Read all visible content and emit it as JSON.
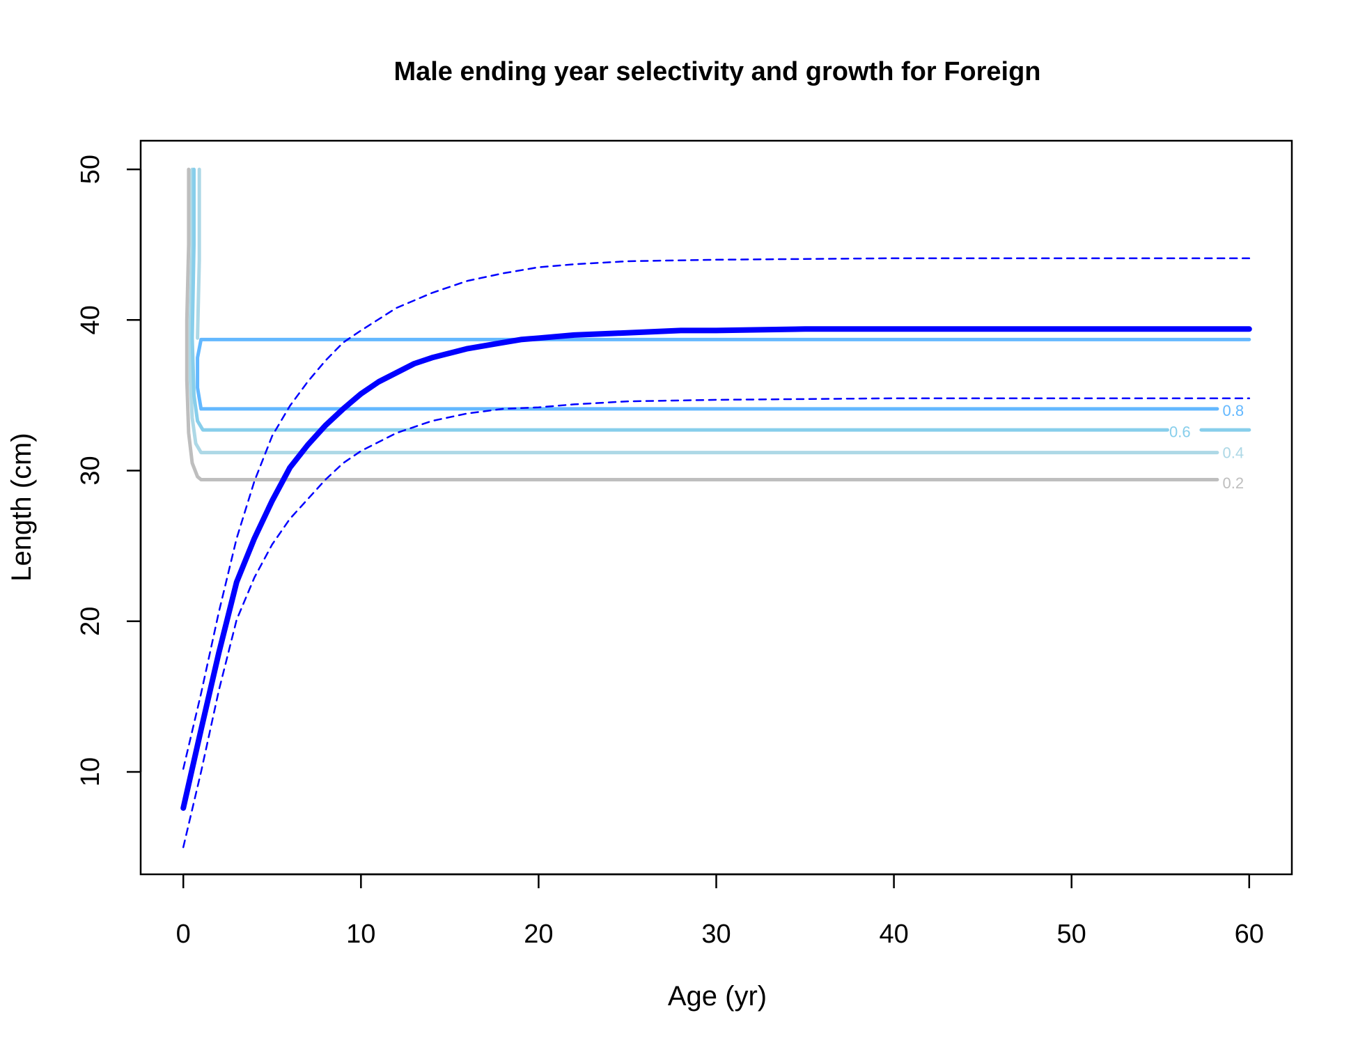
{
  "chart_data": {
    "type": "line",
    "title": "Male ending year selectivity and growth for Foreign",
    "xlabel": "Age (yr)",
    "ylabel": "Length (cm)",
    "xlim": [
      -2.4,
      62.4
    ],
    "ylim": [
      3.2,
      51.9
    ],
    "xticks": [
      0,
      10,
      20,
      30,
      40,
      50,
      60
    ],
    "yticks": [
      10,
      20,
      30,
      40,
      50
    ],
    "grid": false,
    "colors": {
      "growth": "#0000ff",
      "c02": "#bebebe",
      "c04": "#add8e6",
      "c06": "#87ceeb",
      "c08": "#63b8ff"
    },
    "growth_mean": {
      "x": [
        0,
        1,
        2,
        3,
        4,
        5,
        6,
        7,
        8,
        9,
        10,
        11,
        12,
        13,
        14,
        15,
        16,
        17,
        18,
        19,
        20,
        22,
        24,
        26,
        28,
        30,
        35,
        40,
        45,
        50,
        55,
        60
      ],
      "y": [
        7.6,
        12.8,
        17.9,
        22.6,
        25.5,
        28.0,
        30.2,
        31.7,
        33.0,
        34.1,
        35.1,
        35.9,
        36.5,
        37.1,
        37.5,
        37.8,
        38.1,
        38.3,
        38.5,
        38.7,
        38.8,
        39.0,
        39.1,
        39.2,
        39.3,
        39.3,
        39.4,
        39.4,
        39.4,
        39.4,
        39.4,
        39.4
      ]
    },
    "growth_upper": {
      "x": [
        0,
        1,
        2,
        3,
        4,
        5,
        6,
        7,
        8,
        9,
        10,
        12,
        14,
        16,
        18,
        20,
        22,
        25,
        30,
        40,
        50,
        60
      ],
      "y": [
        10.2,
        15.2,
        20.6,
        25.5,
        29.3,
        32.3,
        34.3,
        35.9,
        37.3,
        38.5,
        39.3,
        40.8,
        41.8,
        42.6,
        43.1,
        43.5,
        43.7,
        43.9,
        44.0,
        44.1,
        44.1,
        44.1
      ]
    },
    "growth_lower": {
      "x": [
        0,
        1,
        2,
        3,
        4,
        5,
        6,
        7,
        8,
        9,
        10,
        12,
        14,
        16,
        18,
        20,
        22,
        25,
        30,
        40,
        50,
        60
      ],
      "y": [
        5.0,
        10.0,
        15.4,
        20.1,
        22.9,
        25.1,
        26.8,
        28.1,
        29.4,
        30.5,
        31.3,
        32.5,
        33.3,
        33.8,
        34.1,
        34.2,
        34.4,
        34.6,
        34.7,
        34.8,
        34.8,
        34.8
      ]
    },
    "contours": [
      {
        "level": "0.2",
        "color_key": "c02",
        "x": [
          0.3,
          0.3,
          0.2,
          0.2,
          0.3,
          0.5,
          0.8,
          1.0,
          58.2
        ],
        "y": [
          50.0,
          45.0,
          40.0,
          36.0,
          32.5,
          30.5,
          29.6,
          29.4,
          29.4
        ]
      },
      {
        "level": "0.4",
        "color_key": "c04",
        "x": [
          0.5,
          0.5,
          0.4,
          0.4,
          0.5,
          0.7,
          1.0,
          58.2
        ],
        "y": [
          50.0,
          45.0,
          40.0,
          36.0,
          33.5,
          31.8,
          31.2,
          31.2
        ]
      },
      {
        "level": "0.6",
        "color_key": "c06",
        "x": [
          0.6,
          0.6,
          0.5,
          0.6,
          0.8,
          1.1,
          55.4
        ],
        "y": [
          50.0,
          45.0,
          38.8,
          35.0,
          33.3,
          32.7,
          32.7
        ]
      },
      {
        "level": "0.6",
        "color_key": "c06",
        "x": [
          57.3,
          60.0
        ],
        "y": [
          32.7,
          32.7
        ]
      },
      {
        "level": "0.8",
        "color_key": "c08",
        "x": [
          58.2,
          1.0,
          0.8,
          0.8,
          1.0,
          60.0
        ],
        "y": [
          34.1,
          34.1,
          35.5,
          37.5,
          38.7,
          38.7
        ]
      },
      {
        "level": "top",
        "color_key": "c04",
        "x": [
          0.9,
          0.9,
          0.8
        ],
        "y": [
          50.0,
          44.0,
          38.8
        ]
      }
    ],
    "contour_labels": [
      {
        "text": "0.8",
        "x": 59.1,
        "y": 34.0,
        "color_key": "c08"
      },
      {
        "text": "0.6",
        "x": 56.1,
        "y": 32.6,
        "color_key": "c06"
      },
      {
        "text": "0.4",
        "x": 59.1,
        "y": 31.2,
        "color_key": "c04"
      },
      {
        "text": "0.2",
        "x": 59.1,
        "y": 29.2,
        "color_key": "c02"
      }
    ]
  }
}
